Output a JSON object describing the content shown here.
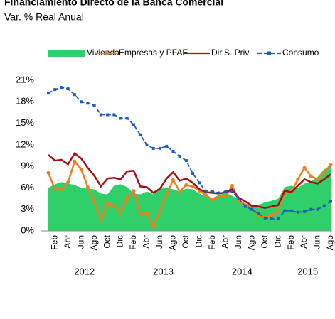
{
  "chart_data": {
    "type": "line",
    "title": "Financiamiento Directo de la Banca Comercial",
    "subtitle": "Var. % Real Anual",
    "categories": [
      null,
      "Feb",
      null,
      "Abr",
      null,
      "Jun",
      null,
      "Ago",
      null,
      "Oct",
      null,
      "Dic",
      null,
      "Feb",
      null,
      "Abr",
      null,
      "Jun",
      null,
      "Ago",
      null,
      "Oct",
      null,
      "Dic",
      null,
      "Feb",
      null,
      "Abr",
      null,
      "Jun",
      null,
      "Ago",
      null,
      "Oct",
      null,
      "Dic",
      null,
      "Feb",
      null,
      "Abr",
      null,
      "Jun",
      null,
      "Ago"
    ],
    "years": [
      "2012",
      "2013",
      "2014",
      "2015"
    ],
    "series": [
      {
        "name": "Vivienda",
        "type": "area",
        "color": "#2fd06a",
        "marker": null,
        "style": "solid",
        "values": [
          6.0,
          6.5,
          6.8,
          6.6,
          6.4,
          6.0,
          5.9,
          5.8,
          5.2,
          5.1,
          6.3,
          6.5,
          6.1,
          5.2,
          5.1,
          5.5,
          5.1,
          5.9,
          6.0,
          5.8,
          5.5,
          5.9,
          5.8,
          5.2,
          4.8,
          4.6,
          5.0,
          5.3,
          4.9,
          4.4,
          3.8,
          3.6,
          3.6,
          4.0,
          4.2,
          4.5,
          6.1,
          6.3,
          6.0,
          6.6,
          6.9,
          7.5,
          8.6,
          9.0
        ]
      },
      {
        "name": "Empresas y PFAE",
        "type": "line",
        "color": "#f07d1e",
        "marker": "circle",
        "style": "solid",
        "values": [
          8.1,
          5.8,
          5.8,
          6.8,
          9.7,
          8.6,
          6.1,
          4.1,
          1.5,
          3.8,
          3.5,
          2.5,
          4.6,
          5.6,
          2.3,
          2.5,
          0.6,
          2.8,
          5.1,
          7.1,
          5.5,
          6.4,
          6.2,
          5.6,
          5.0,
          4.3,
          4.8,
          4.8,
          6.3,
          4.2,
          3.6,
          3.0,
          2.2,
          1.9,
          2.2,
          2.7,
          5.4,
          5.4,
          7.2,
          8.8,
          7.6,
          7.2,
          8.2,
          9.2
        ]
      },
      {
        "name": "Dir.S. Priv.",
        "type": "line",
        "color": "#a3100f",
        "marker": null,
        "style": "solid",
        "values": [
          10.6,
          9.8,
          9.9,
          9.3,
          10.8,
          10.1,
          8.8,
          7.7,
          6.2,
          7.3,
          7.4,
          7.2,
          8.3,
          8.4,
          6.2,
          6.1,
          5.3,
          5.9,
          7.3,
          8.2,
          7.0,
          7.3,
          6.7,
          5.8,
          5.4,
          5.3,
          5.2,
          5.4,
          5.8,
          4.6,
          4.1,
          3.5,
          3.4,
          3.2,
          3.4,
          3.6,
          5.6,
          5.4,
          6.3,
          7.2,
          6.8,
          6.6,
          7.2,
          7.9
        ]
      },
      {
        "name": "Consumo",
        "type": "line",
        "color": "#1f5cbf",
        "marker": "square",
        "style": "dashed",
        "values": [
          19.2,
          19.7,
          20.0,
          19.8,
          19.0,
          18.0,
          17.8,
          17.5,
          16.2,
          16.2,
          16.2,
          15.7,
          15.7,
          14.8,
          13.4,
          12.0,
          11.5,
          11.5,
          11.8,
          11.1,
          10.4,
          9.8,
          8.0,
          6.7,
          5.5,
          5.5,
          5.3,
          5.5,
          5.5,
          4.5,
          3.4,
          3.0,
          2.4,
          1.8,
          1.7,
          1.7,
          2.8,
          2.8,
          2.6,
          2.7,
          3.0,
          3.0,
          3.5,
          4.1
        ]
      }
    ],
    "ylim": [
      0,
      21
    ],
    "yticks": [
      {
        "value": 0,
        "label": "0%"
      },
      {
        "value": 3,
        "label": "3%"
      },
      {
        "value": 6,
        "label": "6%"
      },
      {
        "value": 9,
        "label": "9%"
      },
      {
        "value": 12,
        "label": "12%"
      },
      {
        "value": 15,
        "label": "15%"
      },
      {
        "value": 18,
        "label": "18%"
      },
      {
        "value": 21,
        "label": "21%"
      }
    ],
    "grid": false
  }
}
